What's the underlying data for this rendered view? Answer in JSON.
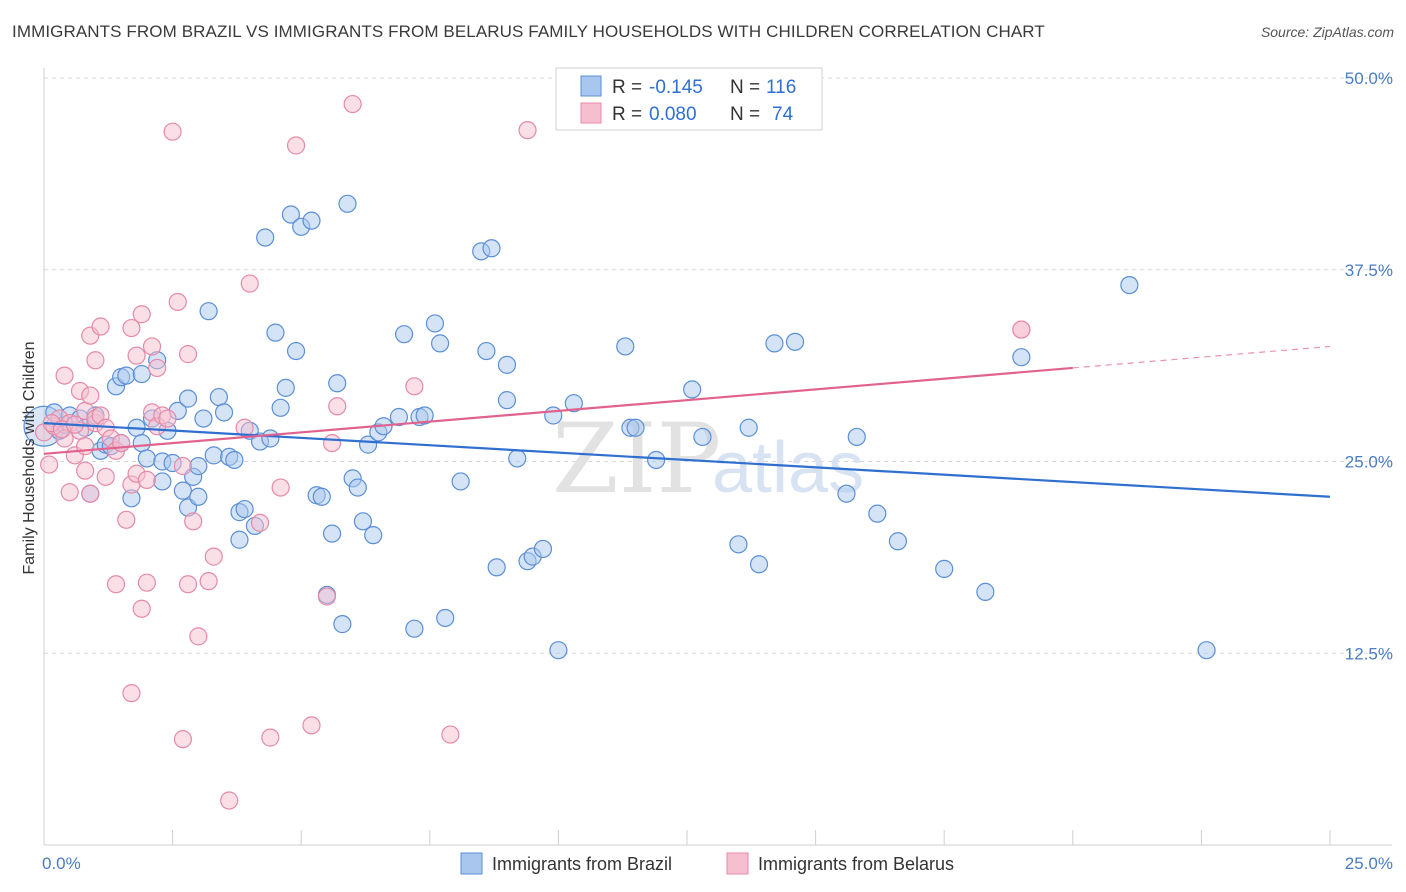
{
  "title": "IMMIGRANTS FROM BRAZIL VS IMMIGRANTS FROM BELARUS FAMILY HOUSEHOLDS WITH CHILDREN CORRELATION CHART",
  "source": "Source: ZipAtlas.com",
  "watermark": {
    "zip": "ZIP",
    "atlas": "atlas"
  },
  "legend_box": {
    "r_label": "R =",
    "n_label": "N =",
    "entries": [
      {
        "r": "-0.145",
        "n": "116"
      },
      {
        "r": "0.080",
        "n": "74"
      }
    ]
  },
  "colors": {
    "brazil_fill": "#a9c7ee",
    "brazil_stroke": "#5b8fd6",
    "brazil_line": "#2f6fd0",
    "belarus_fill": "#f6bfd0",
    "belarus_stroke": "#e58aa8",
    "belarus_line": "#e2628e",
    "grid": "#d9d9d9"
  },
  "chart_data": {
    "type": "scatter",
    "title": "IMMIGRANTS FROM BRAZIL VS IMMIGRANTS FROM BELARUS FAMILY HOUSEHOLDS WITH CHILDREN CORRELATION CHART",
    "xlabel": "",
    "ylabel": "Family Households with Children",
    "xlim": [
      0,
      25
    ],
    "ylim": [
      0,
      50
    ],
    "x_ticks": [
      "0.0%",
      "25.0%"
    ],
    "y_ticks": [
      {
        "value": 12.5,
        "label": "12.5%"
      },
      {
        "value": 25.0,
        "label": "25.0%"
      },
      {
        "value": 37.5,
        "label": "37.5%"
      },
      {
        "value": 50.0,
        "label": "50.0%"
      }
    ],
    "grid": true,
    "legend_position": "bottom",
    "series": [
      {
        "name": "Immigrants from Brazil",
        "r": -0.145,
        "n": 116,
        "trend": {
          "x": [
            0,
            25
          ],
          "y": [
            27.5,
            22.7
          ],
          "dashed_from": null
        },
        "points": [
          [
            0.0,
            27.3
          ],
          [
            0.2,
            28.2
          ],
          [
            0.3,
            27.0
          ],
          [
            0.4,
            27.4
          ],
          [
            0.5,
            28.0
          ],
          [
            0.7,
            27.8
          ],
          [
            0.8,
            27.2
          ],
          [
            0.9,
            22.9
          ],
          [
            1.0,
            28.0
          ],
          [
            1.1,
            25.7
          ],
          [
            1.2,
            26.1
          ],
          [
            1.3,
            26.0
          ],
          [
            1.4,
            29.9
          ],
          [
            1.5,
            26.2
          ],
          [
            1.5,
            30.5
          ],
          [
            1.6,
            30.6
          ],
          [
            1.7,
            22.6
          ],
          [
            1.8,
            27.2
          ],
          [
            1.9,
            26.2
          ],
          [
            1.9,
            30.7
          ],
          [
            2.0,
            25.2
          ],
          [
            2.1,
            27.8
          ],
          [
            2.2,
            31.6
          ],
          [
            2.3,
            23.7
          ],
          [
            2.3,
            25.0
          ],
          [
            2.4,
            27.0
          ],
          [
            2.5,
            24.9
          ],
          [
            2.6,
            28.3
          ],
          [
            2.7,
            23.1
          ],
          [
            2.8,
            29.1
          ],
          [
            2.8,
            22.0
          ],
          [
            2.9,
            24.0
          ],
          [
            3.0,
            22.7
          ],
          [
            3.0,
            24.7
          ],
          [
            3.1,
            27.8
          ],
          [
            3.2,
            34.8
          ],
          [
            3.3,
            25.4
          ],
          [
            3.4,
            29.2
          ],
          [
            3.5,
            28.2
          ],
          [
            3.6,
            25.3
          ],
          [
            3.7,
            25.1
          ],
          [
            3.8,
            21.7
          ],
          [
            3.8,
            19.9
          ],
          [
            3.9,
            21.9
          ],
          [
            4.0,
            27.0
          ],
          [
            4.1,
            20.8
          ],
          [
            4.2,
            26.3
          ],
          [
            4.3,
            39.6
          ],
          [
            4.4,
            26.5
          ],
          [
            4.5,
            33.4
          ],
          [
            4.6,
            28.5
          ],
          [
            4.7,
            29.8
          ],
          [
            4.8,
            41.1
          ],
          [
            4.9,
            32.2
          ],
          [
            5.0,
            40.3
          ],
          [
            5.2,
            40.7
          ],
          [
            5.3,
            22.8
          ],
          [
            5.4,
            22.7
          ],
          [
            5.5,
            16.3
          ],
          [
            5.6,
            20.3
          ],
          [
            5.7,
            30.1
          ],
          [
            5.8,
            14.4
          ],
          [
            5.9,
            41.8
          ],
          [
            6.0,
            23.9
          ],
          [
            6.1,
            23.3
          ],
          [
            6.2,
            21.1
          ],
          [
            6.3,
            26.1
          ],
          [
            6.4,
            20.2
          ],
          [
            6.5,
            26.9
          ],
          [
            6.6,
            27.3
          ],
          [
            6.9,
            27.9
          ],
          [
            7.0,
            33.3
          ],
          [
            7.2,
            14.1
          ],
          [
            7.3,
            27.9
          ],
          [
            7.4,
            28.0
          ],
          [
            7.6,
            34.0
          ],
          [
            7.7,
            32.7
          ],
          [
            7.8,
            14.8
          ],
          [
            8.1,
            23.7
          ],
          [
            8.5,
            38.7
          ],
          [
            8.6,
            32.2
          ],
          [
            8.7,
            38.9
          ],
          [
            8.8,
            18.1
          ],
          [
            9.0,
            31.3
          ],
          [
            9.0,
            29.0
          ],
          [
            9.2,
            25.2
          ],
          [
            9.4,
            18.5
          ],
          [
            9.5,
            18.8
          ],
          [
            9.7,
            19.3
          ],
          [
            9.9,
            28.0
          ],
          [
            10.0,
            12.7
          ],
          [
            10.3,
            28.8
          ],
          [
            11.3,
            32.5
          ],
          [
            11.4,
            27.2
          ],
          [
            11.5,
            27.2
          ],
          [
            11.9,
            25.1
          ],
          [
            12.6,
            29.7
          ],
          [
            12.8,
            26.6
          ],
          [
            13.5,
            19.6
          ],
          [
            13.7,
            27.2
          ],
          [
            13.9,
            18.3
          ],
          [
            14.2,
            32.7
          ],
          [
            14.6,
            32.8
          ],
          [
            15.6,
            22.9
          ],
          [
            15.8,
            26.6
          ],
          [
            16.2,
            21.6
          ],
          [
            16.6,
            19.8
          ],
          [
            17.5,
            18.0
          ],
          [
            18.3,
            16.5
          ],
          [
            19.0,
            31.8
          ],
          [
            21.1,
            36.5
          ],
          [
            22.6,
            12.7
          ]
        ]
      },
      {
        "name": "Immigrants from Belarus",
        "r": 0.08,
        "n": 74,
        "trend": {
          "x": [
            0,
            25
          ],
          "y": [
            25.5,
            32.5
          ],
          "dashed_from": 20.0
        },
        "points": [
          [
            0.0,
            26.9
          ],
          [
            0.1,
            24.8
          ],
          [
            0.2,
            27.3
          ],
          [
            0.3,
            27.8
          ],
          [
            0.4,
            26.5
          ],
          [
            0.4,
            30.6
          ],
          [
            0.5,
            23.0
          ],
          [
            0.5,
            27.5
          ],
          [
            0.6,
            25.4
          ],
          [
            0.7,
            29.6
          ],
          [
            0.7,
            27.0
          ],
          [
            0.8,
            26.0
          ],
          [
            0.8,
            28.3
          ],
          [
            0.8,
            24.4
          ],
          [
            0.9,
            29.3
          ],
          [
            0.9,
            22.9
          ],
          [
            0.9,
            33.2
          ],
          [
            1.0,
            27.5
          ],
          [
            1.0,
            31.6
          ],
          [
            1.0,
            27.8
          ],
          [
            1.1,
            33.8
          ],
          [
            1.1,
            28.0
          ],
          [
            1.2,
            24.0
          ],
          [
            1.2,
            27.2
          ],
          [
            1.3,
            26.5
          ],
          [
            1.4,
            25.7
          ],
          [
            1.4,
            17.0
          ],
          [
            1.5,
            26.2
          ],
          [
            1.6,
            21.2
          ],
          [
            1.7,
            23.5
          ],
          [
            1.7,
            9.9
          ],
          [
            1.7,
            33.7
          ],
          [
            1.8,
            31.9
          ],
          [
            1.8,
            24.2
          ],
          [
            1.9,
            15.4
          ],
          [
            1.9,
            34.6
          ],
          [
            2.0,
            23.8
          ],
          [
            2.0,
            17.1
          ],
          [
            2.1,
            28.2
          ],
          [
            2.1,
            32.5
          ],
          [
            2.2,
            31.1
          ],
          [
            2.2,
            27.3
          ],
          [
            2.3,
            28.0
          ],
          [
            2.4,
            27.8
          ],
          [
            2.5,
            46.5
          ],
          [
            2.6,
            35.4
          ],
          [
            2.7,
            6.9
          ],
          [
            2.7,
            24.7
          ],
          [
            2.8,
            17.0
          ],
          [
            2.8,
            32.0
          ],
          [
            2.9,
            21.1
          ],
          [
            3.0,
            13.6
          ],
          [
            3.2,
            17.2
          ],
          [
            3.3,
            18.8
          ],
          [
            3.6,
            2.9
          ],
          [
            3.9,
            27.2
          ],
          [
            4.0,
            36.6
          ],
          [
            4.2,
            21.0
          ],
          [
            4.4,
            7.0
          ],
          [
            4.6,
            23.3
          ],
          [
            4.9,
            45.6
          ],
          [
            5.2,
            7.8
          ],
          [
            5.5,
            16.2
          ],
          [
            5.6,
            26.2
          ],
          [
            5.7,
            28.6
          ],
          [
            6.0,
            48.3
          ],
          [
            7.2,
            29.9
          ],
          [
            7.9,
            7.2
          ],
          [
            9.4,
            46.6
          ],
          [
            0.15,
            27.5
          ],
          [
            0.35,
            27.1
          ],
          [
            0.6,
            27.4
          ],
          [
            19.0,
            33.6
          ],
          [
            19.0,
            33.6
          ]
        ]
      }
    ]
  },
  "bottom_legend": [
    {
      "label": "Immigrants from Brazil"
    },
    {
      "label": "Immigrants from Belarus"
    }
  ]
}
